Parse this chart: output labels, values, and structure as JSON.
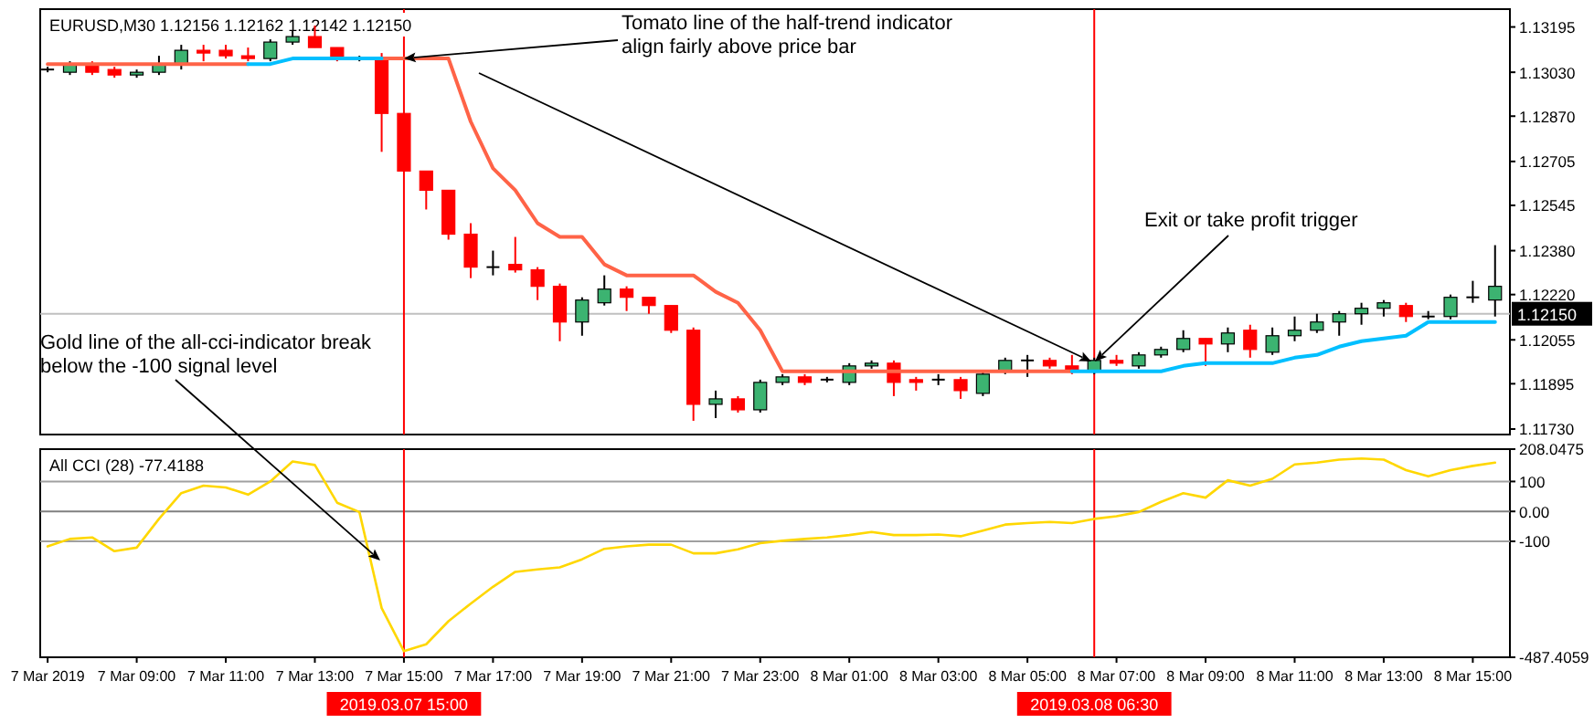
{
  "chart_data": [
    {
      "type": "candlestick",
      "title": "EURUSD,M30  1.12156 1.12162 1.12142 1.12150",
      "x": [
        "2019-03-07T07:00",
        "2019-03-07T07:30",
        "2019-03-07T08:00",
        "2019-03-07T08:30",
        "2019-03-07T09:00",
        "2019-03-07T09:30",
        "2019-03-07T10:00",
        "2019-03-07T10:30",
        "2019-03-07T11:00",
        "2019-03-07T11:30",
        "2019-03-07T12:00",
        "2019-03-07T12:30",
        "2019-03-07T13:00",
        "2019-03-07T13:30",
        "2019-03-07T14:00",
        "2019-03-07T14:30",
        "2019-03-07T15:00",
        "2019-03-07T15:30",
        "2019-03-07T16:00",
        "2019-03-07T16:30",
        "2019-03-07T17:00",
        "2019-03-07T17:30",
        "2019-03-07T18:00",
        "2019-03-07T18:30",
        "2019-03-07T19:00",
        "2019-03-07T19:30",
        "2019-03-07T20:00",
        "2019-03-07T20:30",
        "2019-03-07T21:00",
        "2019-03-07T21:30",
        "2019-03-07T22:00",
        "2019-03-07T22:30",
        "2019-03-07T23:00",
        "2019-03-07T23:30",
        "2019-03-08T00:00",
        "2019-03-08T00:30",
        "2019-03-08T01:00",
        "2019-03-08T01:30",
        "2019-03-08T02:00",
        "2019-03-08T02:30",
        "2019-03-08T03:00",
        "2019-03-08T03:30",
        "2019-03-08T04:00",
        "2019-03-08T04:30",
        "2019-03-08T05:00",
        "2019-03-08T05:30",
        "2019-03-08T06:00",
        "2019-03-08T06:30",
        "2019-03-08T07:00",
        "2019-03-08T07:30",
        "2019-03-08T08:00",
        "2019-03-08T08:30",
        "2019-03-08T09:00",
        "2019-03-08T09:30",
        "2019-03-08T10:00",
        "2019-03-08T10:30",
        "2019-03-08T11:00",
        "2019-03-08T11:30",
        "2019-03-08T12:00",
        "2019-03-08T12:30",
        "2019-03-08T13:00",
        "2019-03-08T13:30",
        "2019-03-08T14:00",
        "2019-03-08T14:30",
        "2019-03-08T15:00",
        "2019-03-08T15:30"
      ],
      "series": [
        {
          "colors": [
            "#000000",
            "#3cb371",
            "#ff0000",
            "#ff0000",
            "#3cb371",
            "#3cb371",
            "#3cb371",
            "#ff0000",
            "#ff0000",
            "#ff0000",
            "#3cb371",
            "#3cb371",
            "#ff0000",
            "#ff0000",
            "#000000",
            "#ff0000",
            "#ff0000",
            "#ff0000",
            "#ff0000",
            "#ff0000",
            "#000000",
            "#ff0000",
            "#ff0000",
            "#ff0000",
            "#3cb371",
            "#3cb371",
            "#ff0000",
            "#ff0000",
            "#ff0000",
            "#ff0000",
            "#3cb371",
            "#ff0000",
            "#3cb371",
            "#3cb371",
            "#ff0000",
            "#000000",
            "#3cb371",
            "#3cb371",
            "#ff0000",
            "#ff0000",
            "#000000",
            "#ff0000",
            "#3cb371",
            "#3cb371",
            "#000000",
            "#ff0000",
            "#ff0000",
            "#3cb371",
            "#ff0000",
            "#3cb371",
            "#3cb371",
            "#3cb371",
            "#ff0000",
            "#3cb371",
            "#ff0000",
            "#3cb371",
            "#3cb371",
            "#3cb371",
            "#3cb371",
            "#3cb371",
            "#3cb371",
            "#ff0000",
            "#000000",
            "#3cb371",
            "#000000",
            "#3cb371"
          ],
          "ohlc": [
            [
              1.1304,
              1.1305,
              1.1303,
              1.1304
            ],
            [
              1.1303,
              1.1307,
              1.1302,
              1.1306
            ],
            [
              1.1306,
              1.1307,
              1.1302,
              1.1303
            ],
            [
              1.1304,
              1.1305,
              1.1301,
              1.1302
            ],
            [
              1.1302,
              1.1304,
              1.1301,
              1.1303
            ],
            [
              1.1303,
              1.1309,
              1.1302,
              1.1306
            ],
            [
              1.1306,
              1.1313,
              1.1304,
              1.1311
            ],
            [
              1.1311,
              1.1313,
              1.1307,
              1.131
            ],
            [
              1.1311,
              1.1313,
              1.1308,
              1.1309
            ],
            [
              1.1309,
              1.1312,
              1.1307,
              1.1308
            ],
            [
              1.1308,
              1.1315,
              1.1307,
              1.1314
            ],
            [
              1.1314,
              1.1318,
              1.1313,
              1.1316
            ],
            [
              1.1316,
              1.132,
              1.1312,
              1.1312
            ],
            [
              1.1312,
              1.1312,
              1.1307,
              1.1308
            ],
            [
              1.1308,
              1.1309,
              1.1307,
              1.1308
            ],
            [
              1.1308,
              1.131,
              1.1274,
              1.1288
            ],
            [
              1.1288,
              1.1288,
              1.1267,
              1.1267
            ],
            [
              1.1267,
              1.1267,
              1.1253,
              1.126
            ],
            [
              1.126,
              1.126,
              1.1242,
              1.1244
            ],
            [
              1.1244,
              1.1248,
              1.1228,
              1.1232
            ],
            [
              1.1232,
              1.1238,
              1.1229,
              1.1232
            ],
            [
              1.1233,
              1.1243,
              1.123,
              1.1231
            ],
            [
              1.1231,
              1.1232,
              1.122,
              1.1225
            ],
            [
              1.1225,
              1.1226,
              1.1205,
              1.1212
            ],
            [
              1.1212,
              1.1221,
              1.1207,
              1.122
            ],
            [
              1.1219,
              1.1229,
              1.1218,
              1.1224
            ],
            [
              1.1224,
              1.1225,
              1.1216,
              1.1221
            ],
            [
              1.1221,
              1.1221,
              1.1215,
              1.1218
            ],
            [
              1.1218,
              1.1218,
              1.1208,
              1.1209
            ],
            [
              1.1209,
              1.121,
              1.1176,
              1.1182
            ],
            [
              1.1182,
              1.1187,
              1.1177,
              1.1184
            ],
            [
              1.1184,
              1.1185,
              1.1179,
              1.118
            ],
            [
              1.118,
              1.1191,
              1.1179,
              1.119
            ],
            [
              1.119,
              1.1193,
              1.1189,
              1.1192
            ],
            [
              1.1192,
              1.1193,
              1.1189,
              1.119
            ],
            [
              1.1191,
              1.1192,
              1.119,
              1.1191
            ],
            [
              1.119,
              1.1197,
              1.1189,
              1.1196
            ],
            [
              1.1196,
              1.1198,
              1.1195,
              1.1197
            ],
            [
              1.1197,
              1.1198,
              1.1185,
              1.119
            ],
            [
              1.1191,
              1.1192,
              1.1187,
              1.119
            ],
            [
              1.1191,
              1.1193,
              1.1189,
              1.1191
            ],
            [
              1.1191,
              1.1192,
              1.1184,
              1.1187
            ],
            [
              1.1186,
              1.1194,
              1.1185,
              1.1193
            ],
            [
              1.1194,
              1.1199,
              1.1193,
              1.1198
            ],
            [
              1.1198,
              1.12,
              1.1192,
              1.1198
            ],
            [
              1.1198,
              1.1199,
              1.1195,
              1.1196
            ],
            [
              1.1196,
              1.12,
              1.1193,
              1.1194
            ],
            [
              1.1194,
              1.1199,
              1.1193,
              1.1198
            ],
            [
              1.1198,
              1.12,
              1.1196,
              1.1197
            ],
            [
              1.1196,
              1.1201,
              1.1195,
              1.12
            ],
            [
              1.12,
              1.1203,
              1.1199,
              1.1202
            ],
            [
              1.1202,
              1.1209,
              1.1201,
              1.1206
            ],
            [
              1.1206,
              1.1206,
              1.1196,
              1.1204
            ],
            [
              1.1204,
              1.121,
              1.1201,
              1.1208
            ],
            [
              1.1209,
              1.1211,
              1.1199,
              1.1202
            ],
            [
              1.1201,
              1.121,
              1.12,
              1.1207
            ],
            [
              1.1207,
              1.1214,
              1.1205,
              1.1209
            ],
            [
              1.1209,
              1.1215,
              1.1208,
              1.1212
            ],
            [
              1.1212,
              1.1216,
              1.1207,
              1.1215
            ],
            [
              1.1215,
              1.1219,
              1.1211,
              1.1217
            ],
            [
              1.1217,
              1.122,
              1.1214,
              1.1219
            ],
            [
              1.1218,
              1.1219,
              1.1212,
              1.1214
            ],
            [
              1.1214,
              1.1216,
              1.1213,
              1.1214
            ],
            [
              1.1214,
              1.1222,
              1.1213,
              1.1221
            ],
            [
              1.1221,
              1.1227,
              1.1219,
              1.1221
            ],
            [
              1.122,
              1.124,
              1.1214,
              1.1225
            ]
          ]
        },
        {
          "type": "line",
          "color": "#ff6347",
          "values": [
            1.1306,
            1.1306,
            1.1306,
            1.1306,
            1.1306,
            1.1306,
            1.1306,
            1.1306,
            1.1306,
            1.1306,
            null,
            null,
            null,
            null,
            null,
            1.1308,
            1.1308,
            1.1308,
            1.1308,
            1.1285,
            1.1268,
            1.126,
            1.1248,
            1.1243,
            1.1243,
            1.1233,
            1.1229,
            1.1229,
            1.1229,
            1.1229,
            1.1223,
            1.1219,
            1.1209,
            1.1194,
            1.1194,
            1.1194,
            1.1194,
            1.1194,
            1.1194,
            1.1194,
            1.1194,
            1.1194,
            1.1194,
            1.1194,
            1.1194,
            1.1194,
            1.1194,
            null,
            null,
            null,
            null,
            null,
            null,
            null,
            null,
            null,
            null,
            null,
            null,
            null,
            null,
            null,
            null,
            null,
            null,
            null
          ]
        },
        {
          "type": "line",
          "color": "#00bfff",
          "values": [
            null,
            null,
            null,
            null,
            null,
            null,
            null,
            null,
            null,
            1.1306,
            1.1306,
            1.1308,
            1.1308,
            1.1308,
            1.1308,
            1.1308,
            null,
            null,
            null,
            null,
            null,
            null,
            null,
            null,
            null,
            null,
            null,
            null,
            null,
            null,
            null,
            null,
            null,
            null,
            null,
            null,
            null,
            null,
            null,
            null,
            null,
            null,
            null,
            null,
            null,
            null,
            1.1194,
            1.1194,
            1.1194,
            1.1194,
            1.1194,
            1.1196,
            1.1197,
            1.1197,
            1.1197,
            1.1197,
            1.1199,
            1.12,
            1.1203,
            1.1205,
            1.1206,
            1.1207,
            1.1212,
            1.1212,
            1.1212,
            1.1212
          ]
        }
      ],
      "xlim": [
        "2019-03-07T06:50",
        "2019-03-08T15:50"
      ],
      "ylim": [
        1.1171,
        1.1326
      ],
      "yticks": [
        {
          "value": 1.13195,
          "label": "1.13195"
        },
        {
          "value": 1.1303,
          "label": "1.13030"
        },
        {
          "value": 1.1287,
          "label": "1.12870"
        },
        {
          "value": 1.12705,
          "label": "1.12705"
        },
        {
          "value": 1.12545,
          "label": "1.12545"
        },
        {
          "value": 1.1238,
          "label": "1.12380"
        },
        {
          "value": 1.1222,
          "label": "1.12220"
        },
        {
          "value": 1.12055,
          "label": "1.12055"
        },
        {
          "value": 1.11895,
          "label": "1.11895"
        },
        {
          "value": 1.1173,
          "label": "1.11730"
        }
      ],
      "tick_labels": "y",
      "ref_lines": [
        {
          "axis": "y",
          "value": 1.1215,
          "label": "1.12150",
          "color": "#c0c0c0"
        },
        {
          "axis": "x",
          "value": "2019-03-07T15:00",
          "color": "#ff0000"
        },
        {
          "axis": "x",
          "value": "2019-03-08T06:30",
          "color": "#ff0000"
        }
      ],
      "annotations": [
        "Tomato line of the half-trend indicator\nalign fairly above price bar",
        "Exit or take profit trigger"
      ]
    },
    {
      "type": "line",
      "title": "All CCI (28) -77.4188",
      "x": [
        "2019-03-07T07:00",
        "2019-03-07T07:30",
        "2019-03-07T08:00",
        "2019-03-07T08:30",
        "2019-03-07T09:00",
        "2019-03-07T09:30",
        "2019-03-07T10:00",
        "2019-03-07T10:30",
        "2019-03-07T11:00",
        "2019-03-07T11:30",
        "2019-03-07T12:00",
        "2019-03-07T12:30",
        "2019-03-07T13:00",
        "2019-03-07T13:30",
        "2019-03-07T14:00",
        "2019-03-07T14:30",
        "2019-03-07T15:00",
        "2019-03-07T15:30",
        "2019-03-07T16:00",
        "2019-03-07T16:30",
        "2019-03-07T17:00",
        "2019-03-07T17:30",
        "2019-03-07T18:00",
        "2019-03-07T18:30",
        "2019-03-07T19:00",
        "2019-03-07T19:30",
        "2019-03-07T20:00",
        "2019-03-07T20:30",
        "2019-03-07T21:00",
        "2019-03-07T21:30",
        "2019-03-07T22:00",
        "2019-03-07T22:30",
        "2019-03-07T23:00",
        "2019-03-07T23:30",
        "2019-03-08T00:00",
        "2019-03-08T00:30",
        "2019-03-08T01:00",
        "2019-03-08T01:30",
        "2019-03-08T02:00",
        "2019-03-08T02:30",
        "2019-03-08T03:00",
        "2019-03-08T03:30",
        "2019-03-08T04:00",
        "2019-03-08T04:30",
        "2019-03-08T05:00",
        "2019-03-08T05:30",
        "2019-03-08T06:00",
        "2019-03-08T06:30",
        "2019-03-08T07:00",
        "2019-03-08T07:30",
        "2019-03-08T08:00",
        "2019-03-08T08:30",
        "2019-03-08T09:00",
        "2019-03-08T09:30",
        "2019-03-08T10:00",
        "2019-03-08T10:30",
        "2019-03-08T11:00",
        "2019-03-08T11:30",
        "2019-03-08T12:00",
        "2019-03-08T12:30",
        "2019-03-08T13:00",
        "2019-03-08T13:30",
        "2019-03-08T14:00",
        "2019-03-08T14:30",
        "2019-03-08T15:00",
        "2019-03-08T15:30"
      ],
      "series": [
        {
          "color": "#ffd700",
          "values": [
            -117,
            -92,
            -87,
            -133,
            -121,
            -25,
            61,
            86,
            80,
            56,
            100,
            167,
            155,
            29,
            -2,
            -323,
            -467,
            -444,
            -367,
            -308,
            -252,
            -202,
            -194,
            -187,
            -160,
            -125,
            -117,
            -111,
            -111,
            -140,
            -140,
            -127,
            -106,
            -98,
            -92,
            -87,
            -79,
            -69,
            -79,
            -79,
            -77,
            -83,
            -64,
            -44,
            -39,
            -35,
            -39,
            -25,
            -16,
            -2,
            32,
            61,
            46,
            104,
            86,
            109,
            157,
            163,
            173,
            177,
            173,
            138,
            117,
            138,
            152,
            163
          ]
        }
      ],
      "xlim": [
        "2019-03-07T06:50",
        "2019-03-08T15:50"
      ],
      "ylim": [
        -487.4059,
        208.0475
      ],
      "yticks": [
        208.0475,
        100,
        {
          "value": 0,
          "label": "0.00"
        },
        -100,
        -487.4059
      ],
      "xticks": [
        {
          "value": "2019-03-07T07:00",
          "label": "7 Mar 2019"
        },
        {
          "value": "2019-03-07T09:00",
          "label": "7 Mar 09:00"
        },
        {
          "value": "2019-03-07T11:00",
          "label": "7 Mar 11:00"
        },
        {
          "value": "2019-03-07T13:00",
          "label": "7 Mar 13:00"
        },
        {
          "value": "2019-03-07T15:00",
          "label": "7 Mar 15:00"
        },
        {
          "value": "2019-03-07T17:00",
          "label": "7 Mar 17:00"
        },
        {
          "value": "2019-03-07T19:00",
          "label": "7 Mar 19:00"
        },
        {
          "value": "2019-03-07T21:00",
          "label": "7 Mar 21:00"
        },
        {
          "value": "2019-03-07T23:00",
          "label": "7 Mar 23:00"
        },
        {
          "value": "2019-03-08T01:00",
          "label": "8 Mar 01:00"
        },
        {
          "value": "2019-03-08T03:00",
          "label": "8 Mar 03:00"
        },
        {
          "value": "2019-03-08T05:00",
          "label": "8 Mar 05:00"
        },
        {
          "value": "2019-03-08T07:00",
          "label": "8 Mar 07:00"
        },
        {
          "value": "2019-03-08T09:00",
          "label": "8 Mar 09:00"
        },
        {
          "value": "2019-03-08T11:00",
          "label": "8 Mar 11:00"
        },
        {
          "value": "2019-03-08T13:00",
          "label": "8 Mar 13:00"
        },
        {
          "value": "2019-03-08T15:00",
          "label": "8 Mar 15:00"
        }
      ],
      "ref_lines": [
        {
          "axis": "y",
          "value": 100,
          "color": "#a0a0a0"
        },
        {
          "axis": "y",
          "value": 0,
          "color": "#808080"
        },
        {
          "axis": "y",
          "value": -100,
          "color": "#a0a0a0"
        },
        {
          "axis": "x",
          "value": "2019-03-07T15:00",
          "label": "2019.03.07 15:00",
          "color": "#ff0000"
        },
        {
          "axis": "x",
          "value": "2019-03-08T06:30",
          "label": "2019.03.08 06:30",
          "color": "#ff0000"
        }
      ],
      "annotations": [
        "Gold line of the all-cci-indicator break\nbelow the -100 signal level"
      ]
    }
  ]
}
